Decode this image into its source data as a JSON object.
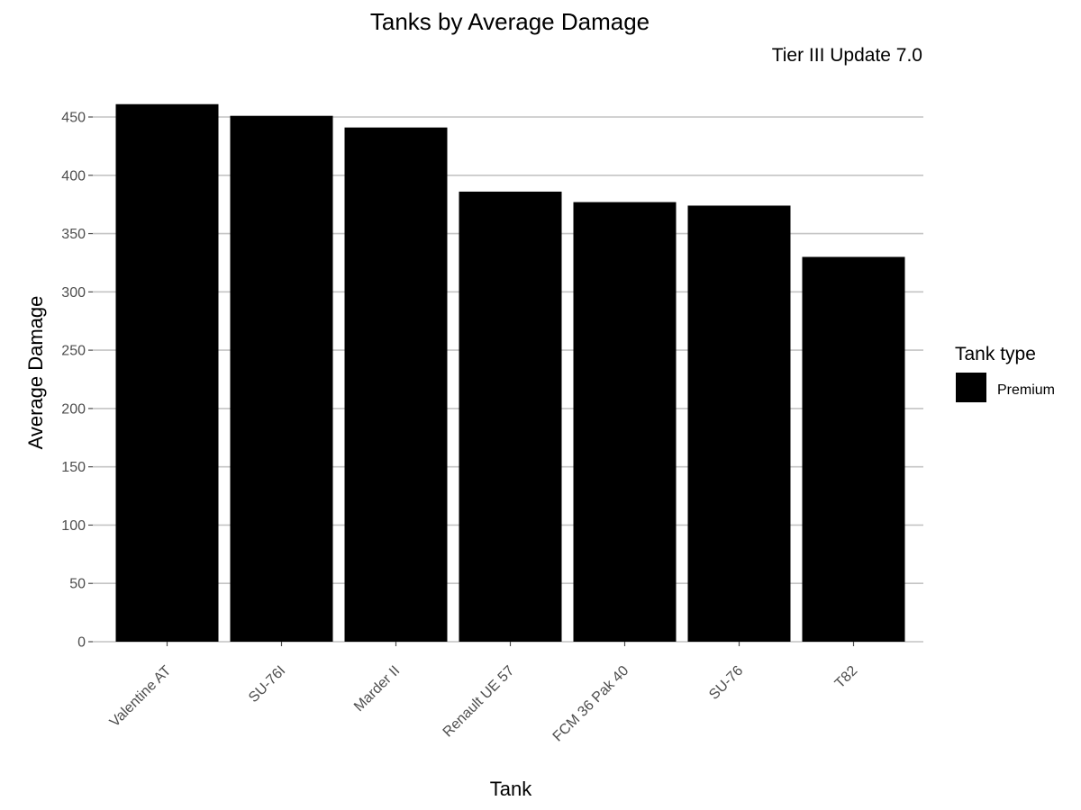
{
  "chart_data": {
    "type": "bar",
    "title": "Tanks by Average Damage",
    "subtitle": "Tier III Update 7.0",
    "xlabel": "Tank",
    "ylabel": "Average Damage",
    "categories": [
      "Valentine AT",
      "SU-76I",
      "Marder II",
      "Renault UE 57",
      "FCM 36 Pak 40",
      "SU-76",
      "T82"
    ],
    "series": [
      {
        "name": "Premium",
        "values": [
          461,
          451,
          441,
          386,
          377,
          374,
          330
        ],
        "color": "#000000"
      }
    ],
    "ylim": [
      0,
      460
    ],
    "yticks": [
      0,
      50,
      100,
      150,
      200,
      250,
      300,
      350,
      400,
      450
    ],
    "grid": true,
    "legend": {
      "title": "Tank type",
      "position": "right"
    }
  }
}
